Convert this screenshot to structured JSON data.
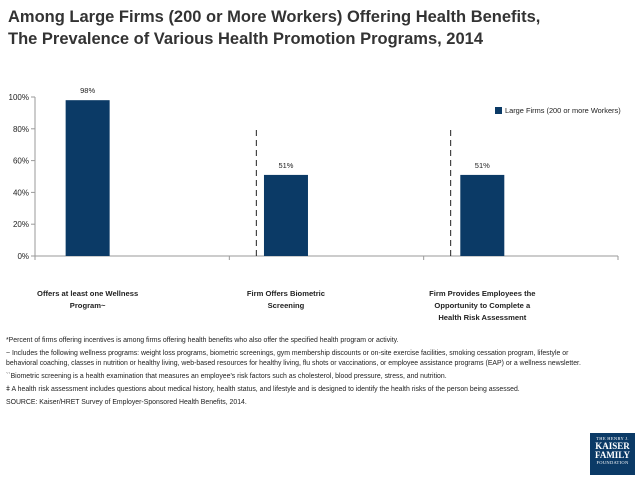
{
  "title": {
    "line1": "Among Large Firms (200 or More Workers) Offering Health Benefits,",
    "line2": "The Prevalence of Various Health Promotion Programs, 2014"
  },
  "chart_data": {
    "type": "bar",
    "title": "Among Large Firms (200 or More Workers) Offering Health Benefits, The Prevalence of Various Health Promotion Programs, 2014",
    "categories": [
      [
        "Offers at least one Wellness",
        "Program~"
      ],
      [
        "Firm Offers Biometric",
        "Screening"
      ],
      [
        "Firm Provides Employees the",
        "Opportunity to Complete a",
        "Health Risk Assessment"
      ]
    ],
    "series": [
      {
        "name": "Large Firms (200 or more Workers)",
        "values": [
          98,
          51,
          51
        ],
        "labels": [
          "98%",
          "51%",
          "51%"
        ],
        "color": "#0b3a66"
      }
    ],
    "yticks": [
      "0%",
      "20%",
      "40%",
      "60%",
      "80%",
      "100%"
    ],
    "ylim": [
      0,
      100
    ],
    "xlabel": "",
    "ylabel": "",
    "legend_position": "top-right",
    "grid": false
  },
  "notes": {
    "n1": "*Percent of firms offering incentives is among firms offering health benefits who also offer the specified health program or activity.",
    "n2": "~ Includes the following wellness programs: weight loss programs, biometric screenings, gym membership discounts or on-site exercise facilities, smoking cessation program, lifestyle or behavioral coaching, classes in nutrition or healthy living, web-based resources for healthy living, flu shots or vaccinations, or employee assistance programs (EAP) or a wellness newsletter.",
    "n3": "``Biometric screening is a health examination that measures an employee's risk factors such as cholesterol, blood pressure, stress, and nutrition.",
    "n4": "ǂ A health risk assessment includes questions about medical history, health status, and lifestyle and is designed to identify the health risks of the person being assessed.",
    "source": "SOURCE: Kaiser/HRET Survey of Employer-Sponsored Health Benefits, 2014."
  },
  "logo": {
    "line1": "THE HENRY J.",
    "line2": "KAISER",
    "line3": "FAMILY",
    "line4": "FOUNDATION"
  }
}
